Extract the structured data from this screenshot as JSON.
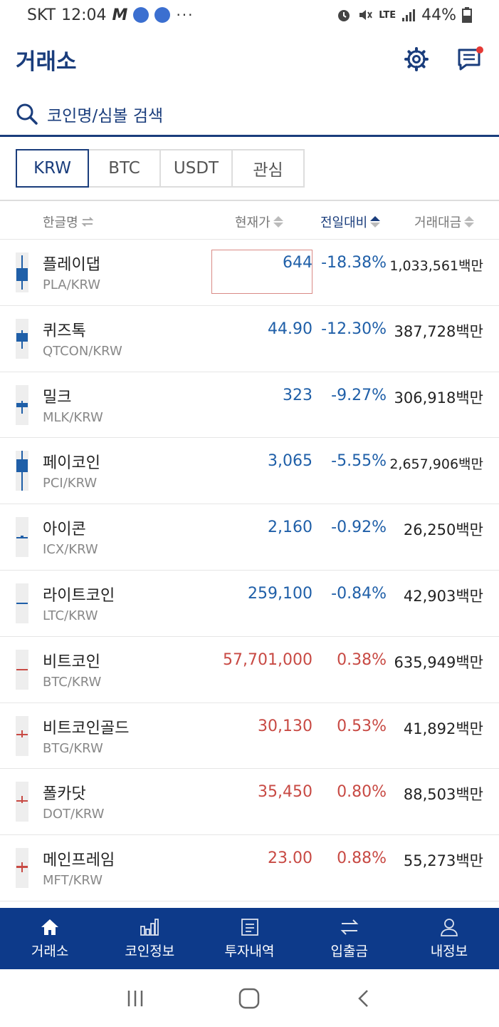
{
  "status_bar": {
    "carrier": "SKT",
    "time": "12:04",
    "m_icon": "M",
    "dots": "···",
    "network": "LTE",
    "battery": "44%"
  },
  "header": {
    "title": "거래소"
  },
  "search": {
    "placeholder": "코인명/심볼 검색"
  },
  "tabs": [
    {
      "label": "KRW",
      "active": true
    },
    {
      "label": "BTC",
      "active": false
    },
    {
      "label": "USDT",
      "active": false
    },
    {
      "label": "관심",
      "active": false
    }
  ],
  "table_header": {
    "name": "한글명",
    "price": "현재가",
    "change": "전일대비",
    "volume": "거래대금"
  },
  "coins": [
    {
      "name": "플레이댑",
      "symbol": "PLA/KRW",
      "price": "644",
      "change": "-18.38%",
      "volume": "1,033,561백만",
      "dir": "down"
    },
    {
      "name": "퀴즈톡",
      "symbol": "QTCON/KRW",
      "price": "44.90",
      "change": "-12.30%",
      "volume": "387,728백만",
      "dir": "down"
    },
    {
      "name": "밀크",
      "symbol": "MLK/KRW",
      "price": "323",
      "change": "-9.27%",
      "volume": "306,918백만",
      "dir": "down"
    },
    {
      "name": "페이코인",
      "symbol": "PCI/KRW",
      "price": "3,065",
      "change": "-5.55%",
      "volume": "2,657,906백만",
      "dir": "down"
    },
    {
      "name": "아이콘",
      "symbol": "ICX/KRW",
      "price": "2,160",
      "change": "-0.92%",
      "volume": "26,250백만",
      "dir": "down"
    },
    {
      "name": "라이트코인",
      "symbol": "LTC/KRW",
      "price": "259,100",
      "change": "-0.84%",
      "volume": "42,903백만",
      "dir": "down"
    },
    {
      "name": "비트코인",
      "symbol": "BTC/KRW",
      "price": "57,701,000",
      "change": "0.38%",
      "volume": "635,949백만",
      "dir": "up"
    },
    {
      "name": "비트코인골드",
      "symbol": "BTG/KRW",
      "price": "30,130",
      "change": "0.53%",
      "volume": "41,892백만",
      "dir": "up"
    },
    {
      "name": "폴카닷",
      "symbol": "DOT/KRW",
      "price": "35,450",
      "change": "0.80%",
      "volume": "88,503백만",
      "dir": "up"
    },
    {
      "name": "메인프레임",
      "symbol": "MFT/KRW",
      "price": "23.00",
      "change": "0.88%",
      "volume": "55,273백만",
      "dir": "up"
    }
  ],
  "bottom_nav": [
    {
      "label": "거래소",
      "icon": "home-icon"
    },
    {
      "label": "코인정보",
      "icon": "bar-chart-icon"
    },
    {
      "label": "투자내역",
      "icon": "document-icon"
    },
    {
      "label": "입출금",
      "icon": "transfer-icon"
    },
    {
      "label": "내정보",
      "icon": "person-icon"
    }
  ],
  "colors": {
    "brand": "#0d3a8a",
    "title": "#1a3d7c",
    "down": "#1f5fa8",
    "up": "#c84a44"
  }
}
